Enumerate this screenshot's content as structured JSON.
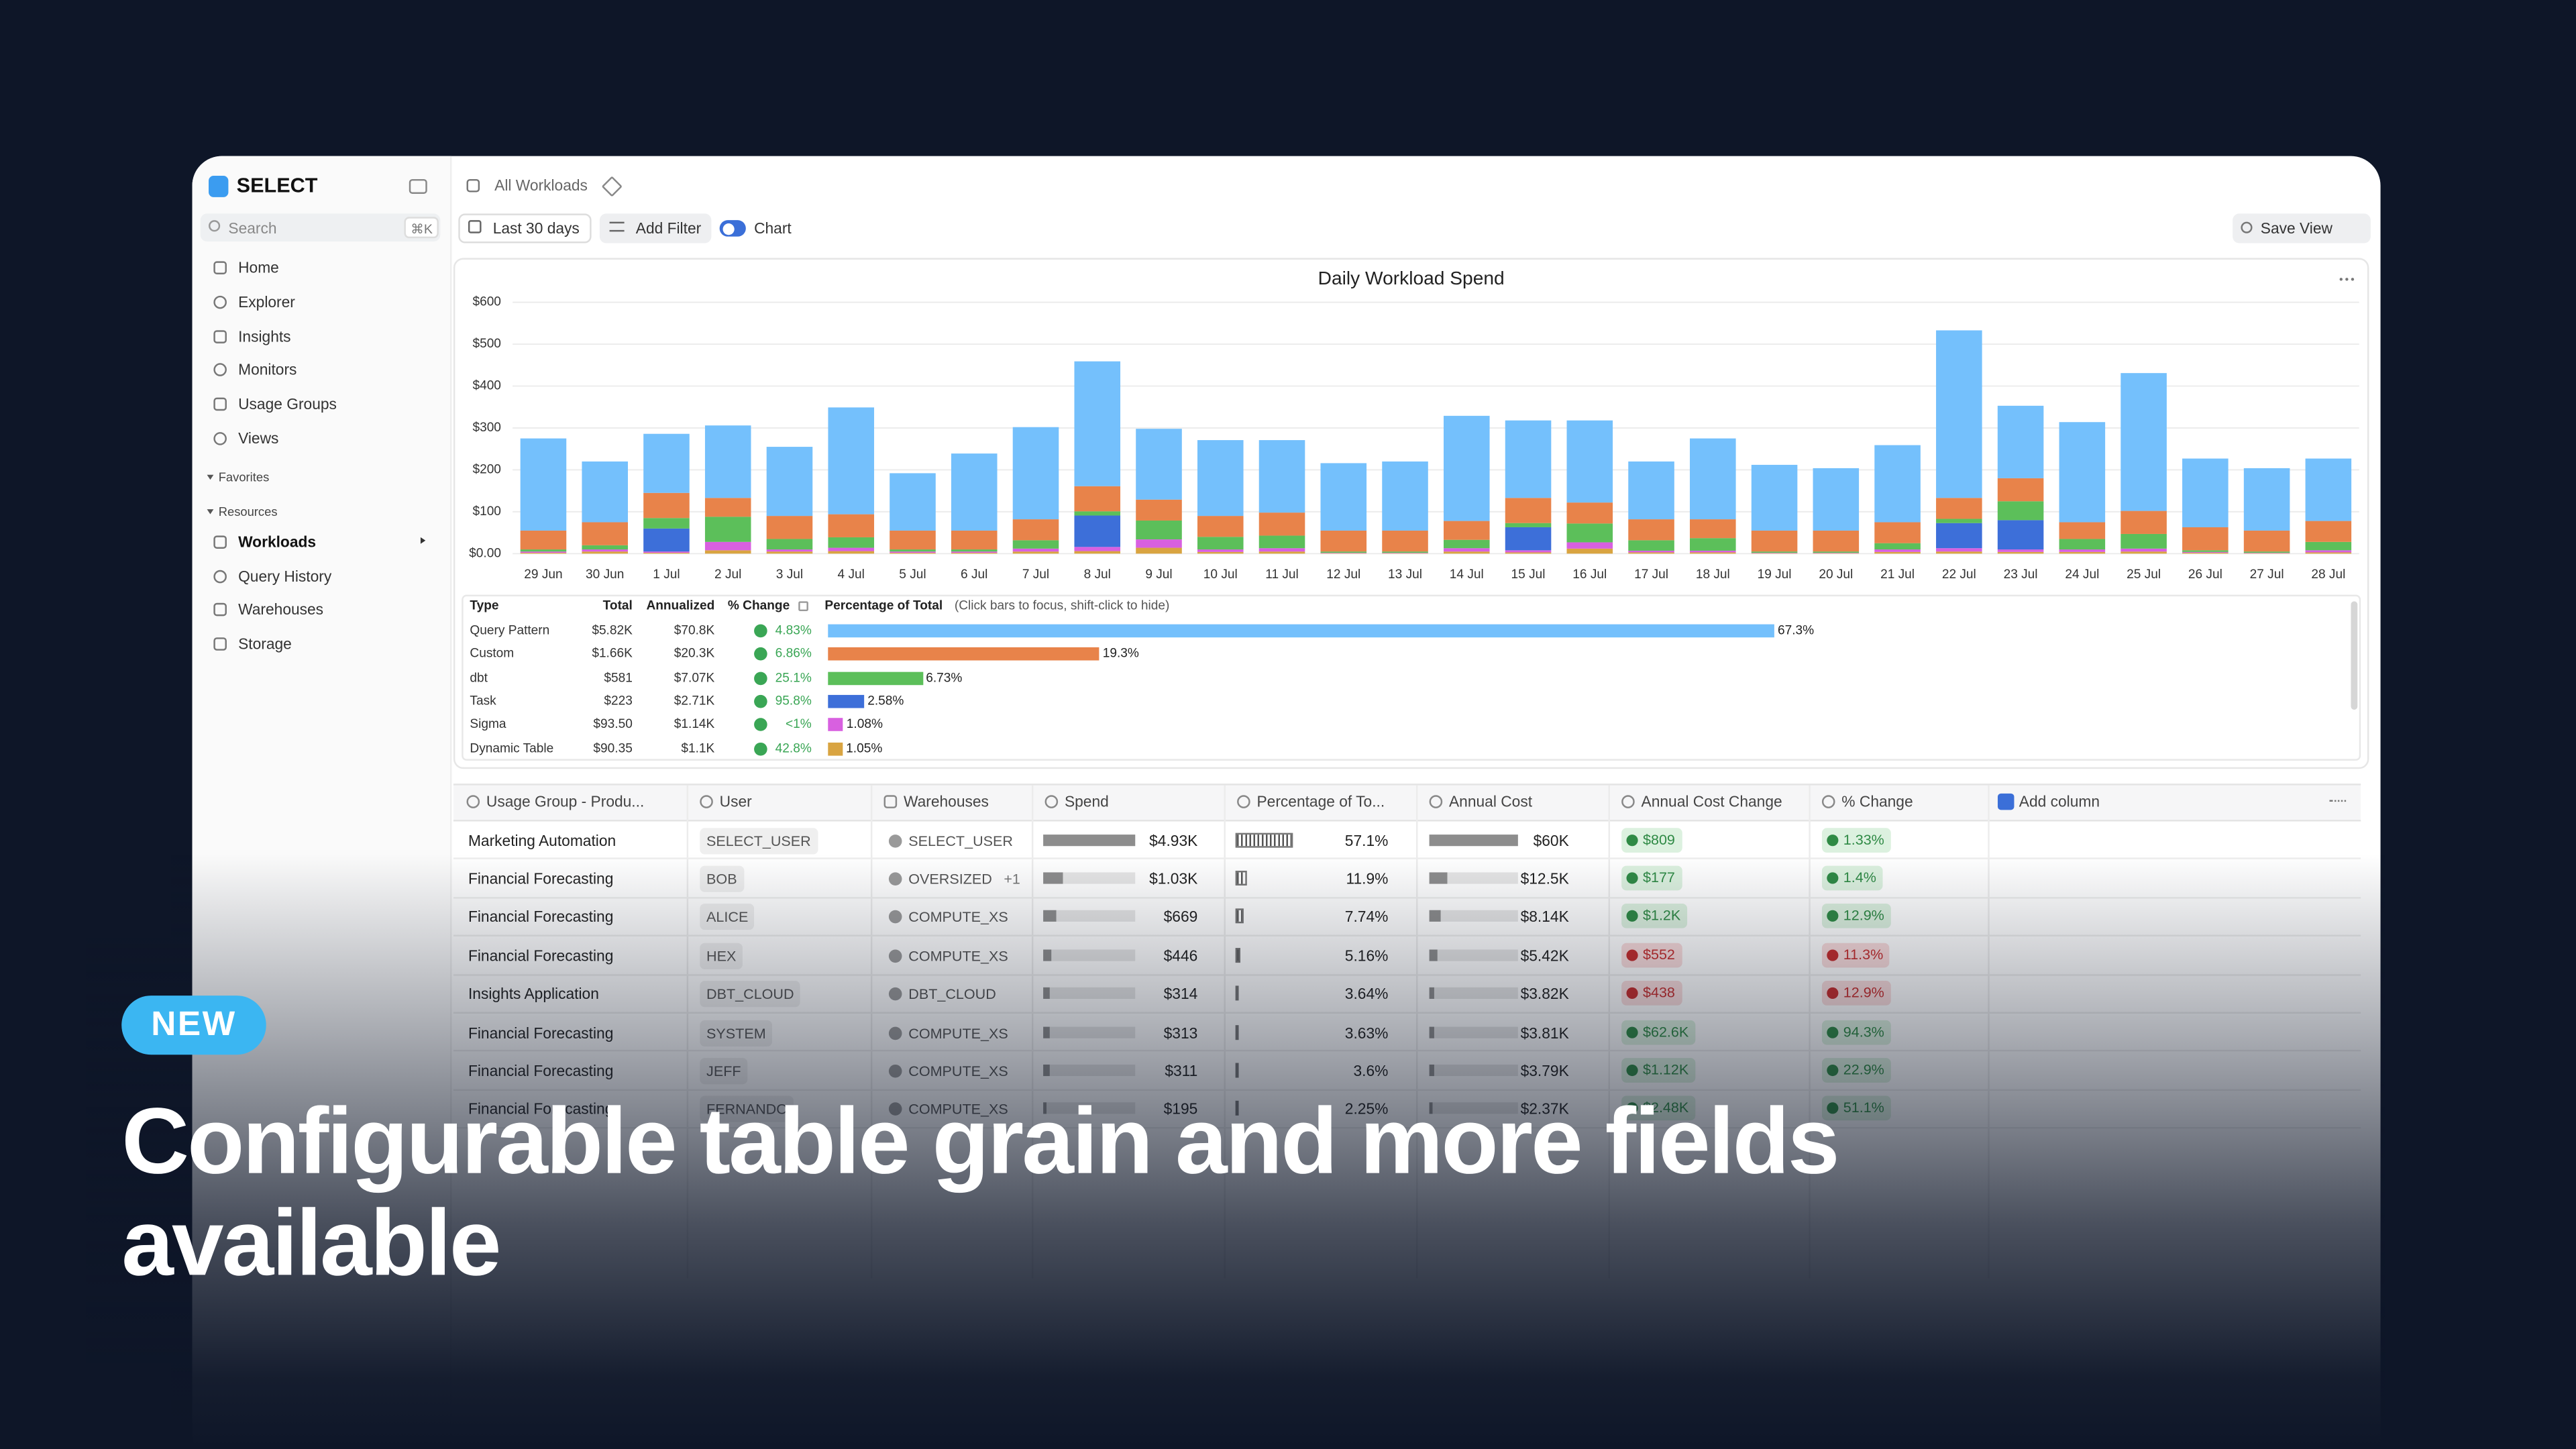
{
  "banner": {
    "badge": "NEW",
    "headline": "Configurable table grain and more fields available"
  },
  "sidebar": {
    "brand": "SELECT",
    "search": "Search",
    "shortcut": "⌘K",
    "nav": [
      "Home",
      "Explorer",
      "Insights",
      "Monitors",
      "Usage Groups",
      "Views"
    ],
    "favorites": "Favorites",
    "resources_label": "Resources",
    "resources": [
      "Workloads",
      "Query History",
      "Warehouses",
      "Storage"
    ]
  },
  "toolbar": {
    "breadcrumb": "All Workloads",
    "date_range": "Last 30 days",
    "add_filter": "Add Filter",
    "chart_toggle": "Chart",
    "save_view": "Save View"
  },
  "chart_data": {
    "type": "stacked_bar",
    "title": "Daily Workload Spend",
    "categories": [
      "29 Jun",
      "30 Jun",
      "1 Jul",
      "2 Jul",
      "3 Jul",
      "4 Jul",
      "5 Jul",
      "6 Jul",
      "7 Jul",
      "8 Jul",
      "9 Jul",
      "10 Jul",
      "11 Jul",
      "12 Jul",
      "13 Jul",
      "14 Jul",
      "15 Jul",
      "16 Jul",
      "17 Jul",
      "18 Jul",
      "19 Jul",
      "20 Jul",
      "21 Jul",
      "22 Jul",
      "23 Jul",
      "24 Jul",
      "25 Jul",
      "26 Jul",
      "27 Jul",
      "28 Jul"
    ],
    "series": [
      {
        "name": "Query Pattern",
        "color": "#74c0fc",
        "values": [
          220,
          145,
          141,
          173,
          165,
          255,
          137,
          184,
          220,
          298,
          169,
          181,
          173,
          161,
          165,
          251,
          185,
          196,
          138,
          193,
          157,
          149,
          184,
          400,
          173,
          239,
          329,
          164,
          149,
          149
        ]
      },
      {
        "name": "Custom",
        "color": "#e8834a",
        "values": [
          45,
          55,
          60,
          45,
          55,
          55,
          45,
          45,
          50,
          60,
          50,
          50,
          55,
          50,
          50,
          45,
          60,
          50,
          50,
          45,
          50,
          50,
          50,
          50,
          55,
          40,
          55,
          55,
          50,
          50
        ]
      },
      {
        "name": "dbt",
        "color": "#5cbf5a",
        "values": [
          5,
          10,
          25,
          60,
          25,
          25,
          5,
          5,
          20,
          10,
          45,
          30,
          30,
          3,
          3,
          20,
          10,
          45,
          25,
          30,
          3,
          3,
          15,
          10,
          45,
          25,
          35,
          4,
          3,
          20
        ]
      },
      {
        "name": "Task",
        "color": "#3d6fd9",
        "values": [
          0,
          0,
          55,
          0,
          0,
          0,
          0,
          0,
          0,
          75,
          0,
          0,
          0,
          0,
          0,
          0,
          55,
          0,
          0,
          0,
          0,
          0,
          0,
          60,
          70,
          0,
          0,
          0,
          0,
          0
        ]
      },
      {
        "name": "Sigma",
        "color": "#d860e0",
        "values": [
          3,
          5,
          3,
          20,
          5,
          8,
          3,
          3,
          7,
          10,
          20,
          6,
          8,
          1,
          1,
          8,
          5,
          15,
          4,
          4,
          1,
          1,
          6,
          8,
          6,
          6,
          7,
          2,
          1,
          5
        ]
      },
      {
        "name": "Dynamic Table",
        "color": "#d9a441",
        "values": [
          2,
          5,
          2,
          8,
          5,
          6,
          2,
          2,
          5,
          6,
          14,
          4,
          5,
          1,
          1,
          5,
          3,
          12,
          3,
          3,
          1,
          1,
          4,
          5,
          4,
          4,
          5,
          2,
          1,
          3
        ]
      }
    ],
    "ylim": [
      0,
      600
    ],
    "yticks": [
      {
        "value": 0,
        "label": "$0.00"
      },
      {
        "value": 100,
        "label": "$100"
      },
      {
        "value": 200,
        "label": "$200"
      },
      {
        "value": 300,
        "label": "$300"
      },
      {
        "value": 400,
        "label": "$400"
      },
      {
        "value": 500,
        "label": "$500"
      },
      {
        "value": 600,
        "label": "$600"
      }
    ],
    "grid": true
  },
  "summary": {
    "headers": [
      "Type",
      "Total",
      "Annualized",
      "% Change",
      "Percentage of Total"
    ],
    "hint": "(Click bars to focus, shift-click to hide)",
    "rows": [
      {
        "total": "$5.82K",
        "annualized": "$70.8K",
        "change": "4.83%",
        "share": 67.3,
        "share_label": "67.3%"
      },
      {
        "total": "$1.66K",
        "annualized": "$20.3K",
        "change": "6.86%",
        "share": 19.3,
        "share_label": "19.3%"
      },
      {
        "total": "$581",
        "annualized": "$7.07K",
        "change": "25.1%",
        "share": 6.73,
        "share_label": "6.73%"
      },
      {
        "total": "$223",
        "annualized": "$2.71K",
        "change": "95.8%",
        "share": 2.58,
        "share_label": "2.58%"
      },
      {
        "total": "$93.50",
        "annualized": "$1.14K",
        "change": "<1%",
        "share": 1.08,
        "share_label": "1.08%"
      },
      {
        "total": "$90.35",
        "annualized": "$1.1K",
        "change": "42.8%",
        "share": 1.05,
        "share_label": "1.05%"
      }
    ]
  },
  "table": {
    "headers": [
      "Usage Group - Produ...",
      "User",
      "Warehouses",
      "Spend",
      "Percentage of To...",
      "Annual Cost",
      "Annual Cost Change",
      "% Change"
    ],
    "add_column": "Add column",
    "rows": [
      {
        "group": "Marketing Automation",
        "user": "SELECT_USER",
        "warehouse": "SELECT_USER",
        "spend": "$4.93K",
        "pct": 57.1,
        "pct_label": "57.1%",
        "annual_cost": "$60K",
        "cost_change": "$809",
        "change": "1.33%",
        "trend": "up"
      },
      {
        "group": "Financial Forecasting",
        "user": "BOB",
        "warehouse": "OVERSIZED",
        "warehouse_extra": "+1",
        "spend": "$1.03K",
        "pct": 11.9,
        "pct_label": "11.9%",
        "annual_cost": "$12.5K",
        "cost_change": "$177",
        "change": "1.4%",
        "trend": "up"
      },
      {
        "group": "Financial Forecasting",
        "user": "ALICE",
        "warehouse": "COMPUTE_XS",
        "spend": "$669",
        "pct": 7.74,
        "pct_label": "7.74%",
        "annual_cost": "$8.14K",
        "cost_change": "$1.2K",
        "change": "12.9%",
        "trend": "up"
      },
      {
        "group": "Financial Forecasting",
        "user": "HEX",
        "warehouse": "COMPUTE_XS",
        "spend": "$446",
        "pct": 5.16,
        "pct_label": "5.16%",
        "annual_cost": "$5.42K",
        "cost_change": "$552",
        "change": "11.3%",
        "trend": "down"
      },
      {
        "group": "Insights Application",
        "user": "DBT_CLOUD",
        "warehouse": "DBT_CLOUD",
        "spend": "$314",
        "pct": 3.64,
        "pct_label": "3.64%",
        "annual_cost": "$3.82K",
        "cost_change": "$438",
        "change": "12.9%",
        "trend": "down"
      },
      {
        "group": "Financial Forecasting",
        "user": "SYSTEM",
        "warehouse": "COMPUTE_XS",
        "spend": "$313",
        "pct": 3.63,
        "pct_label": "3.63%",
        "annual_cost": "$3.81K",
        "cost_change": "$62.6K",
        "change": "94.3%",
        "trend": "up"
      },
      {
        "group": "Financial Forecasting",
        "user": "JEFF",
        "warehouse": "COMPUTE_XS",
        "spend": "$311",
        "pct": 3.6,
        "pct_label": "3.6%",
        "annual_cost": "$3.79K",
        "cost_change": "$1.12K",
        "change": "22.9%",
        "trend": "up"
      },
      {
        "group": "Financial Forecasting",
        "user": "FERNANDO",
        "warehouse": "COMPUTE_XS",
        "spend": "$195",
        "pct": 2.25,
        "pct_label": "2.25%",
        "annual_cost": "$2.37K",
        "cost_change": "$2.48K",
        "change": "51.1%",
        "trend": "up"
      }
    ]
  }
}
